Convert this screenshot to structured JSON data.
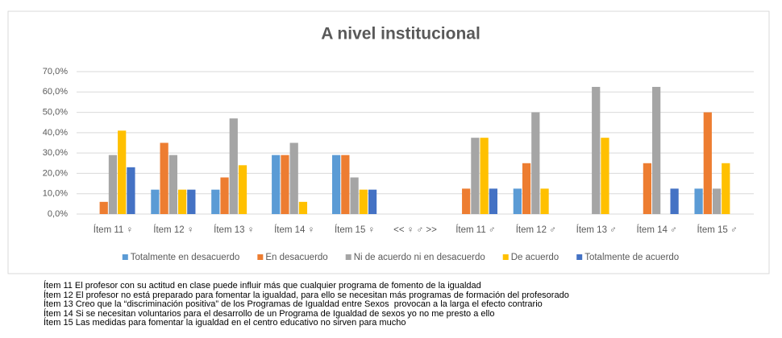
{
  "chart_data": {
    "type": "bar",
    "title": "A nivel institucional",
    "categories": [
      "Ítem 11 ♀",
      "Ítem 12 ♀",
      "Ítem 13 ♀",
      "Ítem 14 ♀",
      "Ítem 15 ♀",
      "<< ♀  ♂ >>",
      "Ítem 11 ♂",
      "Ítem 12 ♂",
      "Ítem 13 ♂",
      "Ítem 14 ♂",
      "Ítem 15 ♂"
    ],
    "series": [
      {
        "name": "Totalmente  en desacuerdo",
        "color": "#5b9bd5",
        "values": [
          0,
          12,
          12,
          29,
          29,
          null,
          0,
          12.5,
          0,
          0,
          12.5
        ]
      },
      {
        "name": "En desacuerdo",
        "color": "#ed7d31",
        "values": [
          6,
          35,
          18,
          29,
          29,
          null,
          12.5,
          25,
          0,
          25,
          50
        ]
      },
      {
        "name": "Ni de acuerdo ni en desacuerdo",
        "color": "#a5a5a5",
        "values": [
          29,
          29,
          47,
          35,
          18,
          null,
          37.5,
          50,
          62.5,
          62.5,
          12.5
        ]
      },
      {
        "name": "De acuerdo",
        "color": "#ffc000",
        "values": [
          41,
          12,
          24,
          6,
          12,
          null,
          37.5,
          12.5,
          37.5,
          0,
          25
        ]
      },
      {
        "name": "Totalmente de acuerdo",
        "color": "#4472c4",
        "values": [
          23,
          12,
          0,
          0,
          12,
          null,
          12.5,
          0,
          0,
          12.5,
          0
        ]
      }
    ],
    "ylim": [
      0,
      70
    ],
    "yticks": [
      {
        "value": 0,
        "label": "0,0%"
      },
      {
        "value": 10,
        "label": "10,0%"
      },
      {
        "value": 20,
        "label": "20,0%"
      },
      {
        "value": 30,
        "label": "30,0%"
      },
      {
        "value": 40,
        "label": "40,0%"
      },
      {
        "value": 50,
        "label": "50,0%"
      },
      {
        "value": 60,
        "label": "60,0%"
      },
      {
        "value": 70,
        "label": "70,0%"
      }
    ],
    "grid": true,
    "legend": "bottom"
  },
  "notes": [
    "Ítem 11 El profesor con su actitud en clase puede influir más que cualquier programa de fomento de la igualdad",
    "Ítem 12 El profesor no está preparado para fomentar la igualdad, para ello se necesitan más programas de formación del profesorado",
    "Ítem 13 Creo que la “discriminación positiva” de los Programas de Igualdad entre Sexos  provocan a la larga el efecto contrario",
    "Ítem 14 Si se necesitan voluntarios para el desarrollo de un Programa de Igualdad de sexos yo no me presto a ello",
    "Ítem 15 Las medidas para fomentar la igualdad en el centro educativo no sirven para mucho"
  ]
}
